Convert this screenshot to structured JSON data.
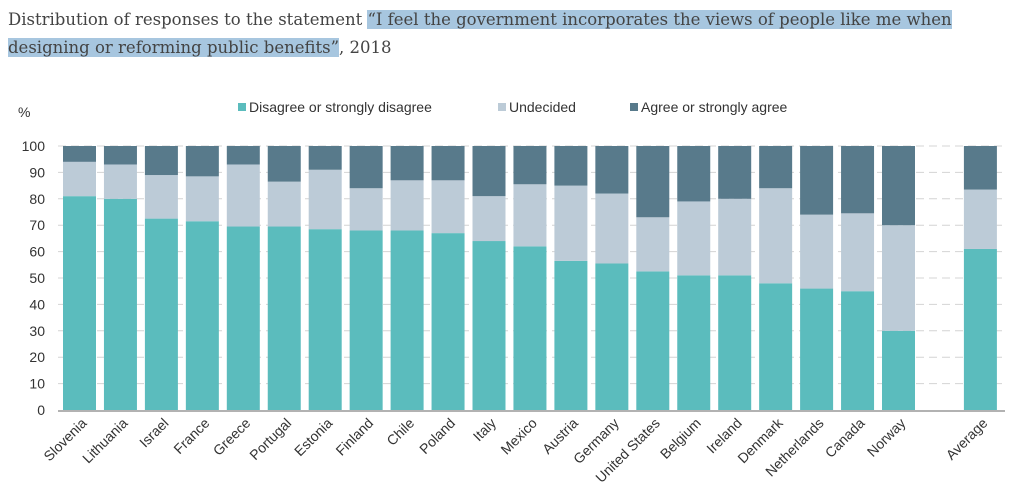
{
  "title": {
    "prefix": "Distribution of responses to the statement ",
    "quote": "“I feel the government incorporates the views of people like me when designing or reforming public benefits”",
    "suffix": ", 2018"
  },
  "chart_data": {
    "type": "bar",
    "stacked": true,
    "ylabel": "%",
    "ylim": [
      0,
      100
    ],
    "yticks": [
      0,
      10,
      20,
      30,
      40,
      50,
      60,
      70,
      80,
      90,
      100
    ],
    "grid": true,
    "legend_position": "top",
    "categories": [
      "Slovenia",
      "Lithuania",
      "Israel",
      "France",
      "Greece",
      "Portugal",
      "Estonia",
      "Finland",
      "Chile",
      "Poland",
      "Italy",
      "Mexico",
      "Austria",
      "Germany",
      "United States",
      "Belgium",
      "Ireland",
      "Denmark",
      "Netherlands",
      "Canada",
      "Norway",
      "",
      "Average"
    ],
    "series": [
      {
        "name": "Disagree or strongly disagree",
        "color": "#5bbcbd",
        "values": [
          81,
          80,
          72.5,
          71.5,
          69.5,
          69.5,
          68.5,
          68,
          68,
          67,
          64,
          62,
          56.5,
          55.5,
          52.5,
          51,
          51,
          48,
          46,
          45,
          30,
          null,
          61
        ]
      },
      {
        "name": "Undecided",
        "color": "#bccbd7",
        "values": [
          13,
          13,
          16.5,
          17,
          23.5,
          17,
          22.5,
          16,
          19,
          20,
          17,
          23.5,
          28.5,
          26.5,
          20.5,
          28,
          29,
          36,
          28,
          29.5,
          40,
          null,
          22.5
        ]
      },
      {
        "name": "Agree or strongly agree",
        "color": "#587a8b",
        "values": [
          6,
          7,
          11,
          11.5,
          7,
          13.5,
          9,
          16,
          13,
          13,
          19,
          14.5,
          15,
          18,
          27,
          21,
          20,
          16,
          26,
          25.5,
          30,
          null,
          16.5
        ]
      }
    ]
  }
}
